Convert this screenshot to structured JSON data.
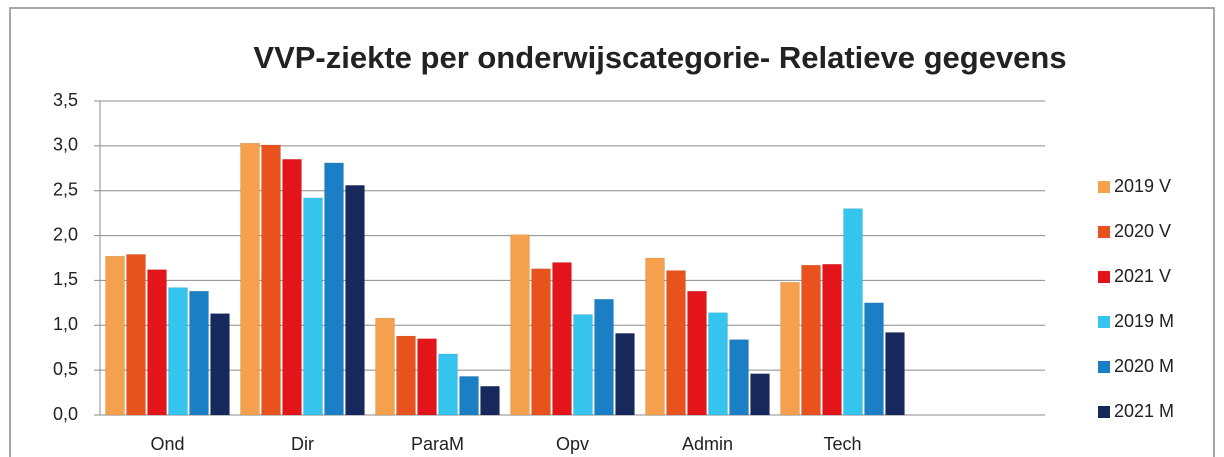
{
  "chart_data": {
    "type": "bar",
    "title": "VVP-ziekte per onderwijscategorie- Relatieve gegevens",
    "categories": [
      "Ond",
      "Dir",
      "ParaM",
      "Opv",
      "Admin",
      "Tech",
      null
    ],
    "series": [
      {
        "name": "2019 V",
        "color": "#f5a04c",
        "values": [
          1.77,
          3.03,
          1.08,
          2.01,
          1.75,
          1.48,
          null
        ]
      },
      {
        "name": "2020 V",
        "color": "#e8521c",
        "values": [
          1.79,
          3.01,
          0.88,
          1.63,
          1.61,
          1.67,
          null
        ]
      },
      {
        "name": "2021 V",
        "color": "#e3151b",
        "values": [
          1.62,
          2.85,
          0.85,
          1.7,
          1.38,
          1.68,
          null
        ]
      },
      {
        "name": "2019 M",
        "color": "#35c4ee",
        "values": [
          1.42,
          2.42,
          0.68,
          1.12,
          1.14,
          2.3,
          null
        ]
      },
      {
        "name": "2020 M",
        "color": "#1b7fc6",
        "values": [
          1.38,
          2.81,
          0.43,
          1.29,
          0.84,
          1.25,
          null
        ]
      },
      {
        "name": "2021 M",
        "color": "#16285c",
        "values": [
          1.13,
          2.56,
          0.32,
          0.91,
          0.46,
          0.92,
          null
        ]
      }
    ],
    "ylim": [
      0,
      3.5
    ],
    "yticks": [
      {
        "value": 0,
        "label": "0,0"
      },
      {
        "value": 0.5,
        "label": "0,5"
      },
      {
        "value": 1,
        "label": "1,0"
      },
      {
        "value": 1.5,
        "label": "1,5"
      },
      {
        "value": 2,
        "label": "2,0"
      },
      {
        "value": 2.5,
        "label": "2,5"
      },
      {
        "value": 3,
        "label": "3,0"
      },
      {
        "value": 3.5,
        "label": "3,5"
      }
    ],
    "grid": true,
    "legend": "right"
  }
}
